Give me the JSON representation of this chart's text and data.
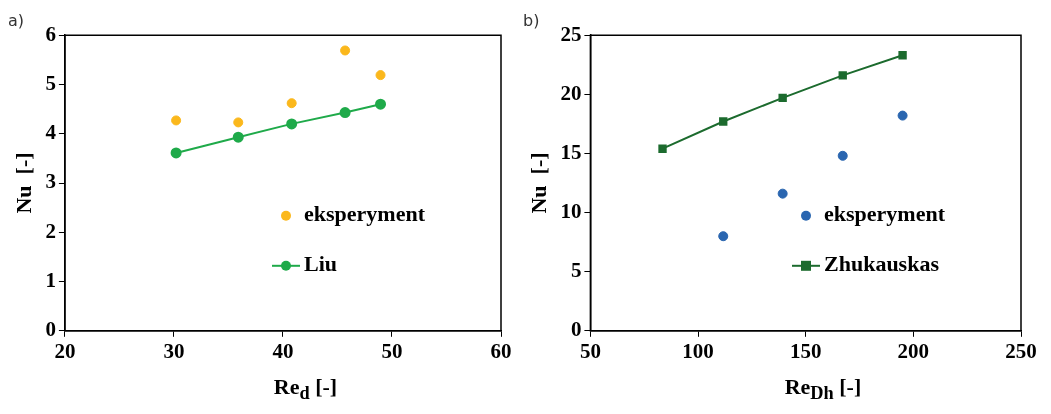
{
  "chart_data": [
    {
      "type": "scatter",
      "title": "a)",
      "xlabel": "Re$_{d}$ [-]",
      "ylabel": "Nu  [-]",
      "xlim": [
        20,
        60
      ],
      "xticks": [
        20,
        30,
        40,
        50,
        60
      ],
      "ylim": [
        0,
        6
      ],
      "yticks": [
        0,
        1,
        2,
        3,
        4,
        5,
        6
      ],
      "grid": false,
      "legend": "bottom right",
      "series": [
        {
          "name": "eksperyment",
          "marker": "circle",
          "color": "#fbb81c",
          "x": [
            30.2,
            35.9,
            40.8,
            45.7,
            48.95
          ],
          "values": [
            4.27,
            4.23,
            4.62,
            5.69,
            5.19
          ]
        },
        {
          "name": "Liu",
          "type": "line",
          "marker": "circle",
          "line_style": "solid",
          "color": "#1faa4a",
          "x": [
            30.2,
            35.9,
            40.8,
            45.7,
            48.95
          ],
          "values": [
            3.61,
            3.93,
            4.2,
            4.43,
            4.6
          ]
        }
      ]
    },
    {
      "type": "scatter",
      "title": "b)",
      "xlabel": "Re$_{Dh}$ [-]",
      "ylabel": "Nu  [-]",
      "xlim": [
        50,
        250
      ],
      "xticks": [
        50,
        100,
        150,
        200,
        250
      ],
      "ylim": [
        0,
        25
      ],
      "yticks": [
        0,
        5,
        10,
        15,
        20,
        25
      ],
      "grid": false,
      "legend": "bottom right",
      "series": [
        {
          "name": "eksperyment",
          "marker": "circle",
          "color": "#2a66b0",
          "x": [
            111.7,
            139.3,
            167.2,
            195
          ],
          "values": [
            8.0,
            11.6,
            14.8,
            18.2
          ]
        },
        {
          "name": "Zhukauskas",
          "type": "line",
          "marker": "square",
          "line_style": "solid",
          "color": "#1c6b2e",
          "x": [
            83.5,
            111.7,
            139.3,
            167.2,
            195
          ],
          "values": [
            15.4,
            17.7,
            19.7,
            21.6,
            23.3
          ]
        }
      ]
    }
  ]
}
